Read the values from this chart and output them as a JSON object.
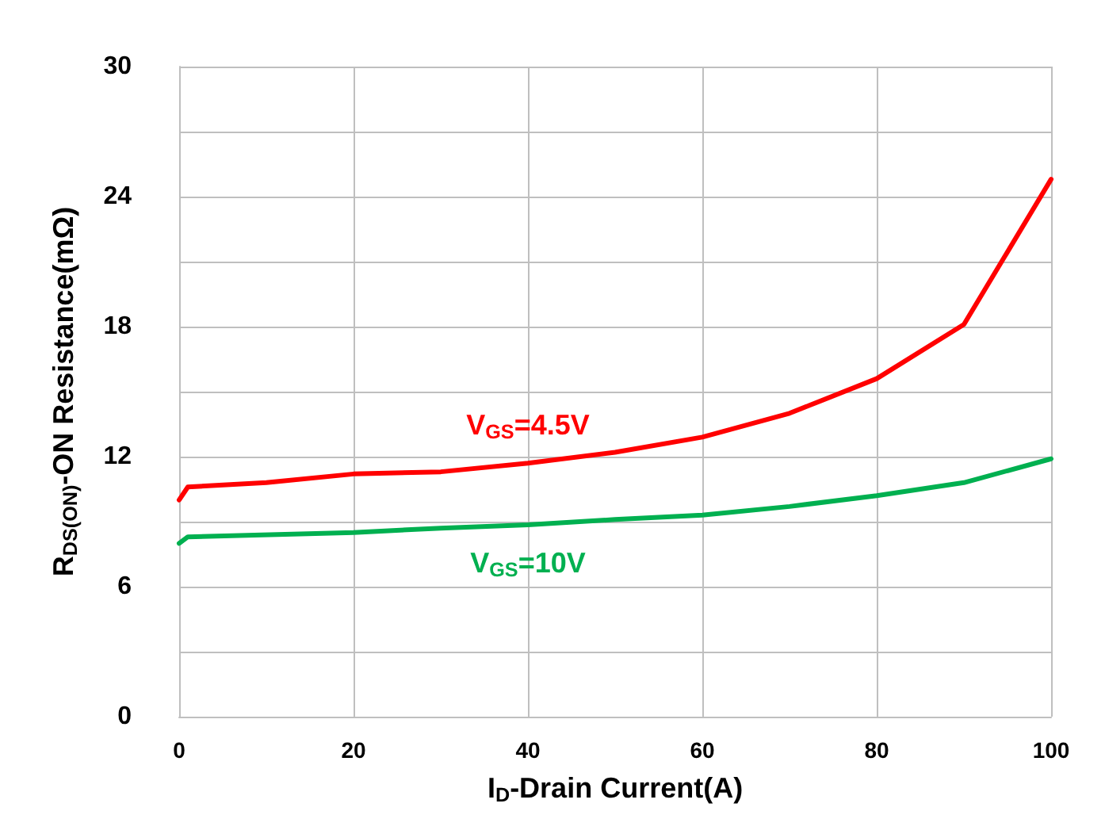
{
  "chart_data": {
    "type": "line",
    "xlabel": "I$_{D}$-Drain Current(A)",
    "ylabel": "R$_{DS(ON)}$-ON Resistance(mΩ)",
    "xlim": [
      0,
      100
    ],
    "xticks": [
      0,
      20,
      40,
      60,
      80,
      100
    ],
    "ylim": [
      0,
      30
    ],
    "yticks": [
      0,
      {
        "value": 3,
        "label": null
      },
      6,
      {
        "value": 9,
        "label": null
      },
      12,
      {
        "value": 15,
        "label": null
      },
      18,
      {
        "value": 21,
        "label": null
      },
      24,
      {
        "value": 27,
        "label": null
      },
      30
    ],
    "grid": true,
    "legend": false,
    "marker": "none",
    "line_style": "solid",
    "series": [
      {
        "name": "V$_{GS}$=4.5V",
        "color": "#ff0000",
        "x": [
          0,
          1,
          10,
          20,
          30,
          40,
          50,
          60,
          70,
          80,
          90,
          100
        ],
        "values": [
          10.0,
          10.6,
          10.8,
          11.2,
          11.3,
          11.7,
          12.2,
          12.9,
          14.0,
          15.6,
          18.1,
          24.8
        ]
      },
      {
        "name": "V$_{GS}$=10V",
        "color": "#00b050",
        "x": [
          0,
          1,
          20,
          30,
          40,
          50,
          60,
          70,
          80,
          90,
          100
        ],
        "values": [
          8.0,
          8.3,
          8.5,
          8.7,
          8.85,
          9.1,
          9.3,
          9.7,
          10.2,
          10.8,
          11.9
        ]
      }
    ]
  }
}
